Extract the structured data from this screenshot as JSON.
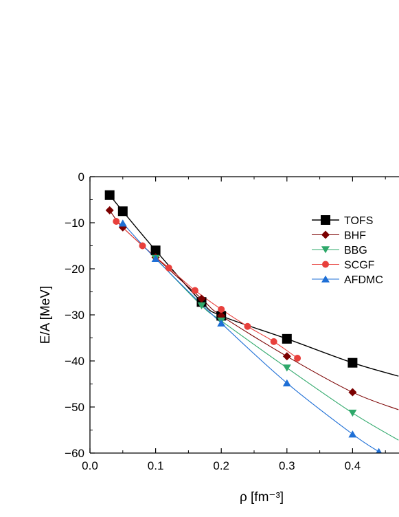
{
  "chart_data": {
    "type": "line",
    "xlabel": "ρ [fm⁻³]",
    "ylabel": "E/A [MeV]",
    "xlim": [
      0.0,
      0.47
    ],
    "ylim": [
      -60,
      0
    ],
    "x_ticks": [
      "0.0",
      "0.1",
      "0.2",
      "0.3",
      "0.4"
    ],
    "y_ticks": [
      "0",
      "−10",
      "−20",
      "−30",
      "−40",
      "−50",
      "−60"
    ],
    "grid": false,
    "legend_position": "right",
    "series": [
      {
        "name": "TOFS",
        "color": "#000000",
        "marker": "square",
        "points": [
          [
            0.03,
            -4.0
          ],
          [
            0.05,
            -7.5
          ],
          [
            0.1,
            -16.0
          ],
          [
            0.17,
            -27.2
          ],
          [
            0.2,
            -30.2
          ],
          [
            0.3,
            -35.2
          ],
          [
            0.4,
            -40.4
          ]
        ],
        "curve": [
          [
            0.03,
            -4.0
          ],
          [
            0.05,
            -7.5
          ],
          [
            0.1,
            -16.0
          ],
          [
            0.17,
            -27.2
          ],
          [
            0.2,
            -30.2
          ],
          [
            0.3,
            -35.2
          ],
          [
            0.4,
            -40.4
          ],
          [
            0.47,
            -43.3
          ]
        ]
      },
      {
        "name": "BHF",
        "color": "#7b0000",
        "marker": "diamond",
        "points": [
          [
            0.03,
            -7.3
          ],
          [
            0.05,
            -11.0
          ],
          [
            0.1,
            -17.5
          ],
          [
            0.17,
            -26.5
          ],
          [
            0.2,
            -30.2
          ],
          [
            0.3,
            -39.0
          ],
          [
            0.4,
            -46.8
          ]
        ],
        "curve": [
          [
            0.03,
            -7.3
          ],
          [
            0.05,
            -11.0
          ],
          [
            0.1,
            -17.5
          ],
          [
            0.17,
            -26.5
          ],
          [
            0.2,
            -30.2
          ],
          [
            0.3,
            -39.0
          ],
          [
            0.4,
            -46.8
          ],
          [
            0.47,
            -50.6
          ]
        ]
      },
      {
        "name": "BBG",
        "color": "#2ea86a",
        "marker": "triangle-down",
        "points": [
          [
            0.1,
            -17.7
          ],
          [
            0.17,
            -28.0
          ],
          [
            0.2,
            -31.3
          ],
          [
            0.3,
            -41.5
          ],
          [
            0.4,
            -51.3
          ]
        ],
        "curve": [
          [
            0.1,
            -17.7
          ],
          [
            0.17,
            -28.0
          ],
          [
            0.2,
            -31.3
          ],
          [
            0.3,
            -41.5
          ],
          [
            0.4,
            -51.3
          ],
          [
            0.47,
            -57.2
          ]
        ]
      },
      {
        "name": "SCGF",
        "color": "#e8403c",
        "marker": "circle",
        "points": [
          [
            0.04,
            -9.7
          ],
          [
            0.08,
            -15.0
          ],
          [
            0.12,
            -19.8
          ],
          [
            0.16,
            -24.7
          ],
          [
            0.2,
            -28.8
          ],
          [
            0.24,
            -32.5
          ],
          [
            0.28,
            -35.8
          ],
          [
            0.316,
            -39.4
          ]
        ],
        "curve": [
          [
            0.04,
            -9.7
          ],
          [
            0.08,
            -15.0
          ],
          [
            0.12,
            -19.8
          ],
          [
            0.16,
            -24.7
          ],
          [
            0.2,
            -28.8
          ],
          [
            0.24,
            -32.5
          ],
          [
            0.28,
            -35.8
          ],
          [
            0.316,
            -39.4
          ]
        ]
      },
      {
        "name": "AFDMC",
        "color": "#1e6fd6",
        "marker": "triangle-up",
        "points": [
          [
            0.05,
            -10.1
          ],
          [
            0.1,
            -17.8
          ],
          [
            0.2,
            -31.8
          ],
          [
            0.3,
            -44.8
          ],
          [
            0.4,
            -55.9
          ],
          [
            0.44,
            -59.7
          ]
        ],
        "curve": [
          [
            0.05,
            -10.1
          ],
          [
            0.1,
            -17.8
          ],
          [
            0.2,
            -31.8
          ],
          [
            0.3,
            -44.8
          ],
          [
            0.4,
            -55.9
          ],
          [
            0.44,
            -59.7
          ]
        ]
      }
    ]
  }
}
